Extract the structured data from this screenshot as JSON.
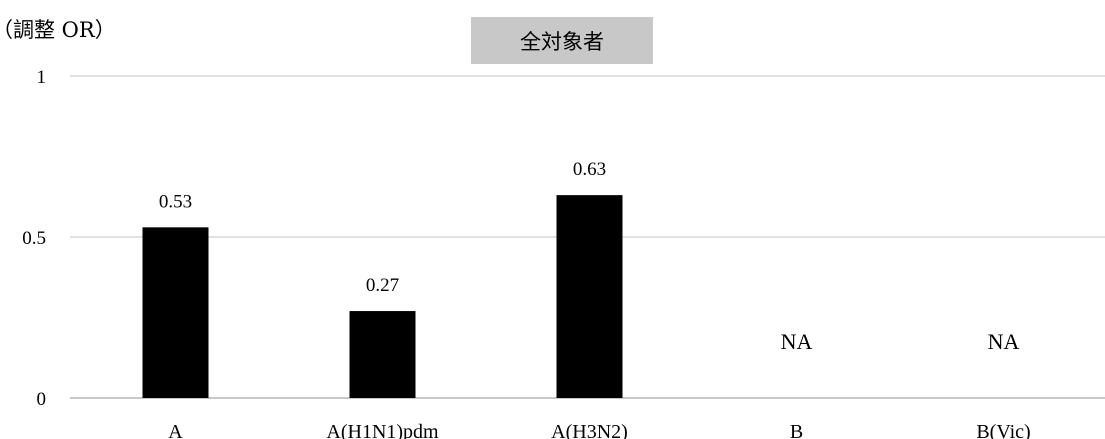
{
  "chart_data": {
    "type": "bar",
    "title": "全対象者",
    "ylabel": "（調整 OR）",
    "xlabel": "",
    "categories": [
      "A",
      "A(H1N1)pdm",
      "A(H3N2)",
      "B",
      "B(Vic)"
    ],
    "values": [
      0.53,
      0.27,
      0.63,
      null,
      null
    ],
    "data_labels": [
      "0.53",
      "0.27",
      "0.63",
      "NA",
      "NA"
    ],
    "ylim": [
      0,
      1
    ],
    "yticks": [
      0,
      0.5,
      1
    ],
    "ytick_labels": [
      "0",
      "0.5",
      "1"
    ],
    "grid": true,
    "legend": "none",
    "bar_color": "#000000",
    "title_box_color": "#c8c8c8",
    "gridline_color": "#cfcfcf"
  }
}
